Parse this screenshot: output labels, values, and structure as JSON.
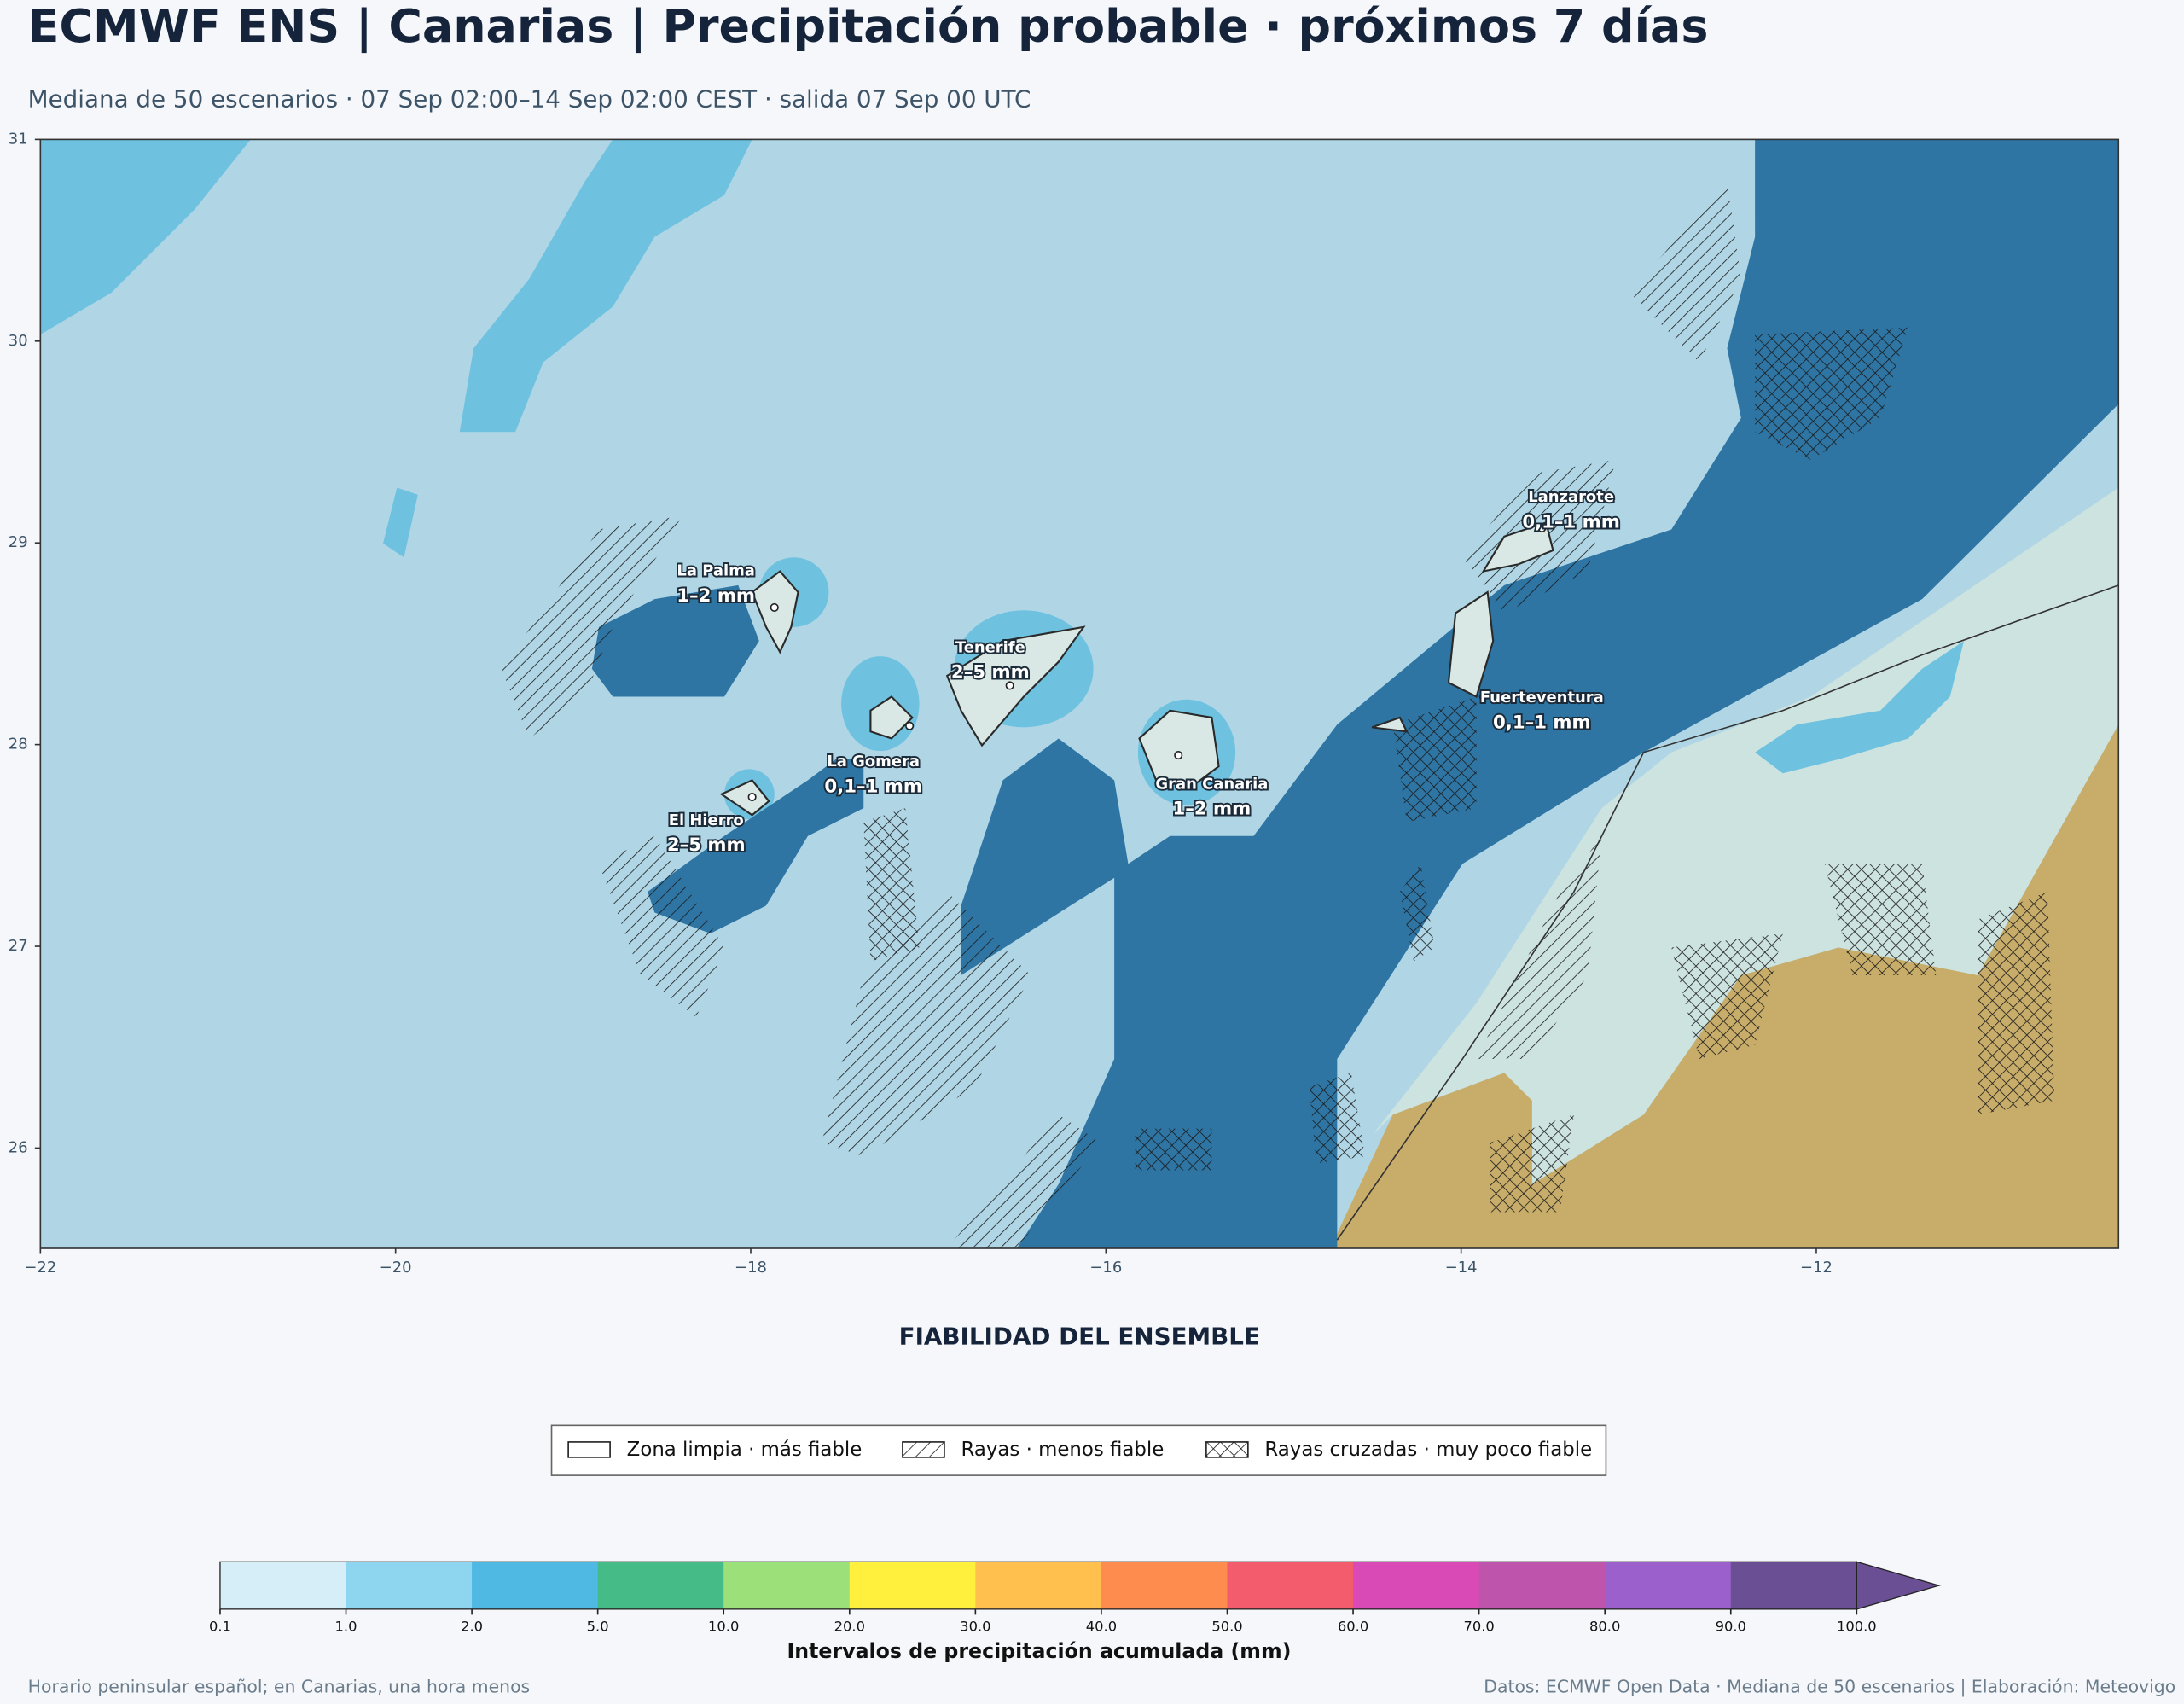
{
  "header": {
    "title": "ECMWF ENS | Canarias | Precipitación probable · próximos 7 días",
    "subtitle": "Mediana de 50 escenarios · 07 Sep 02:00–14 Sep 02:00 CEST · salida 07 Sep 00 UTC"
  },
  "map": {
    "xticks": [
      "−22",
      "−20",
      "−18",
      "−16",
      "−14",
      "−12"
    ],
    "yticks": [
      "31",
      "30",
      "29",
      "28",
      "27",
      "26"
    ],
    "islands": [
      {
        "name": "La Palma",
        "value": "1–2 mm"
      },
      {
        "name": "Tenerife",
        "value": "2–5 mm"
      },
      {
        "name": "La Gomera",
        "value": "0,1–1 mm"
      },
      {
        "name": "El Hierro",
        "value": "2–5 mm"
      },
      {
        "name": "Gran Canaria",
        "value": "1–2 mm"
      },
      {
        "name": "Lanzarote",
        "value": "0,1–1 mm"
      },
      {
        "name": "Fuerteventura",
        "value": "0,1–1 mm"
      }
    ]
  },
  "legend": {
    "title": "FIABILIDAD DEL ENSEMBLE",
    "entries": [
      "Zona limpia · más fiable",
      "Rayas · menos fiable",
      "Rayas cruzadas · muy poco fiable"
    ]
  },
  "colorbar": {
    "ticks": [
      "0.1",
      "1.0",
      "2.0",
      "5.0",
      "10.0",
      "20.0",
      "30.0",
      "40.0",
      "50.0",
      "60.0",
      "70.0",
      "80.0",
      "90.0",
      "100.0"
    ],
    "colors": [
      "#d6eef7",
      "#8ed6f0",
      "#4fb9e3",
      "#45bb88",
      "#9ce07a",
      "#fff03e",
      "#ffc04d",
      "#ff8c4f",
      "#f25c6c",
      "#d94ab6",
      "#bf54ad",
      "#9b60cc",
      "#6b4f94"
    ],
    "label": "Intervalos de precipitación acumulada (mm)"
  },
  "footer": {
    "left": "Horario peninsular español; en Canarias, una hora menos",
    "right": "Datos: ECMWF Open Data · Mediana de 50 escenarios | Elaboración: Meteovigo"
  }
}
